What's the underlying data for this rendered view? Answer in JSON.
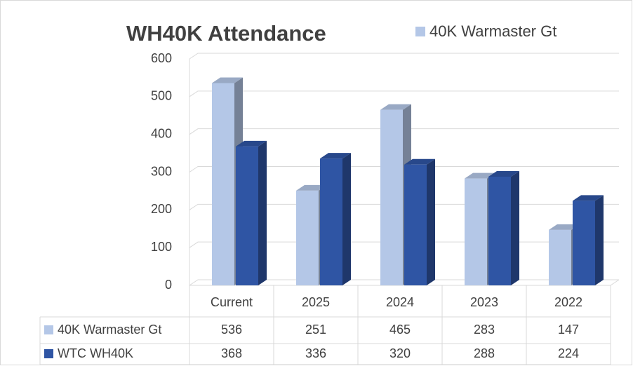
{
  "chart_data": {
    "type": "bar3d",
    "title": "WH40K Attendance",
    "categories": [
      "Current",
      "2025",
      "2024",
      "2023",
      "2022"
    ],
    "series": [
      {
        "name": "40K Warmaster Gt",
        "color": "#b4c7e7",
        "values": [
          536,
          251,
          465,
          283,
          147
        ]
      },
      {
        "name": "WTC WH40K",
        "color": "#2f55a4",
        "values": [
          368,
          336,
          320,
          288,
          224
        ]
      }
    ],
    "ylim": [
      0,
      600
    ],
    "yticks": [
      0,
      100,
      200,
      300,
      400,
      500,
      600
    ],
    "grid": true,
    "legend": "top-right",
    "data_table": true
  }
}
